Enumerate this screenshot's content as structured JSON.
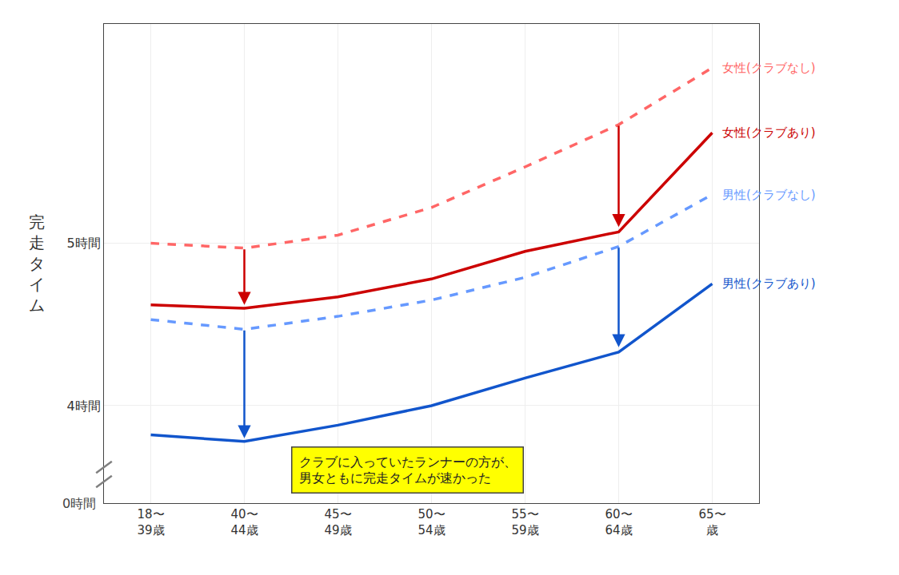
{
  "chart_data": {
    "type": "line",
    "categories": [
      "18〜\n39歳",
      "40〜\n44歳",
      "45〜\n49歳",
      "50〜\n54歳",
      "55〜\n59歳",
      "60〜\n64歳",
      "65〜\n歳"
    ],
    "y_label": "完走タイム",
    "y_break_label": "0時間",
    "series": [
      {
        "name": "女性(クラブなし)",
        "color": "#FF6666",
        "line_style": "dashed",
        "values": [
          5.0,
          4.97,
          5.05,
          5.22,
          5.47,
          5.73,
          6.08
        ]
      },
      {
        "name": "女性(クラブあり)",
        "color": "#CC0000",
        "line_style": "solid",
        "values": [
          4.62,
          4.6,
          4.67,
          4.78,
          4.95,
          5.07,
          5.68
        ]
      },
      {
        "name": "男性(クラブなし)",
        "color": "#6699FF",
        "line_style": "dashed",
        "values": [
          4.53,
          4.47,
          4.55,
          4.65,
          4.79,
          4.98,
          5.3
        ]
      },
      {
        "name": "男性(クラブあり)",
        "color": "#1155CC",
        "line_style": "solid",
        "values": [
          3.82,
          3.78,
          3.88,
          4.0,
          4.17,
          4.33,
          4.75
        ]
      }
    ],
    "ylim": [
      3.4,
      6.35
    ],
    "yticks": [
      {
        "value": 4.0,
        "label": "4時間"
      },
      {
        "value": 5.0,
        "label": "5時間"
      }
    ],
    "grid": true,
    "arrows": [
      {
        "category": "40〜\n44歳",
        "from": 4.97,
        "to": 4.62,
        "color": "#CC0000"
      },
      {
        "category": "40〜\n44歳",
        "from": 4.47,
        "to": 3.8,
        "color": "#1155CC"
      },
      {
        "category": "60〜\n64歳",
        "from": 5.73,
        "to": 5.1,
        "color": "#CC0000"
      },
      {
        "category": "60〜\n64歳",
        "from": 4.98,
        "to": 4.36,
        "color": "#1155CC"
      }
    ],
    "annotations": [
      {
        "text": "クラブに入っていたランナーの方が、\n男女ともに完走タイムが速かった",
        "color": "#FFFF00"
      }
    ]
  }
}
